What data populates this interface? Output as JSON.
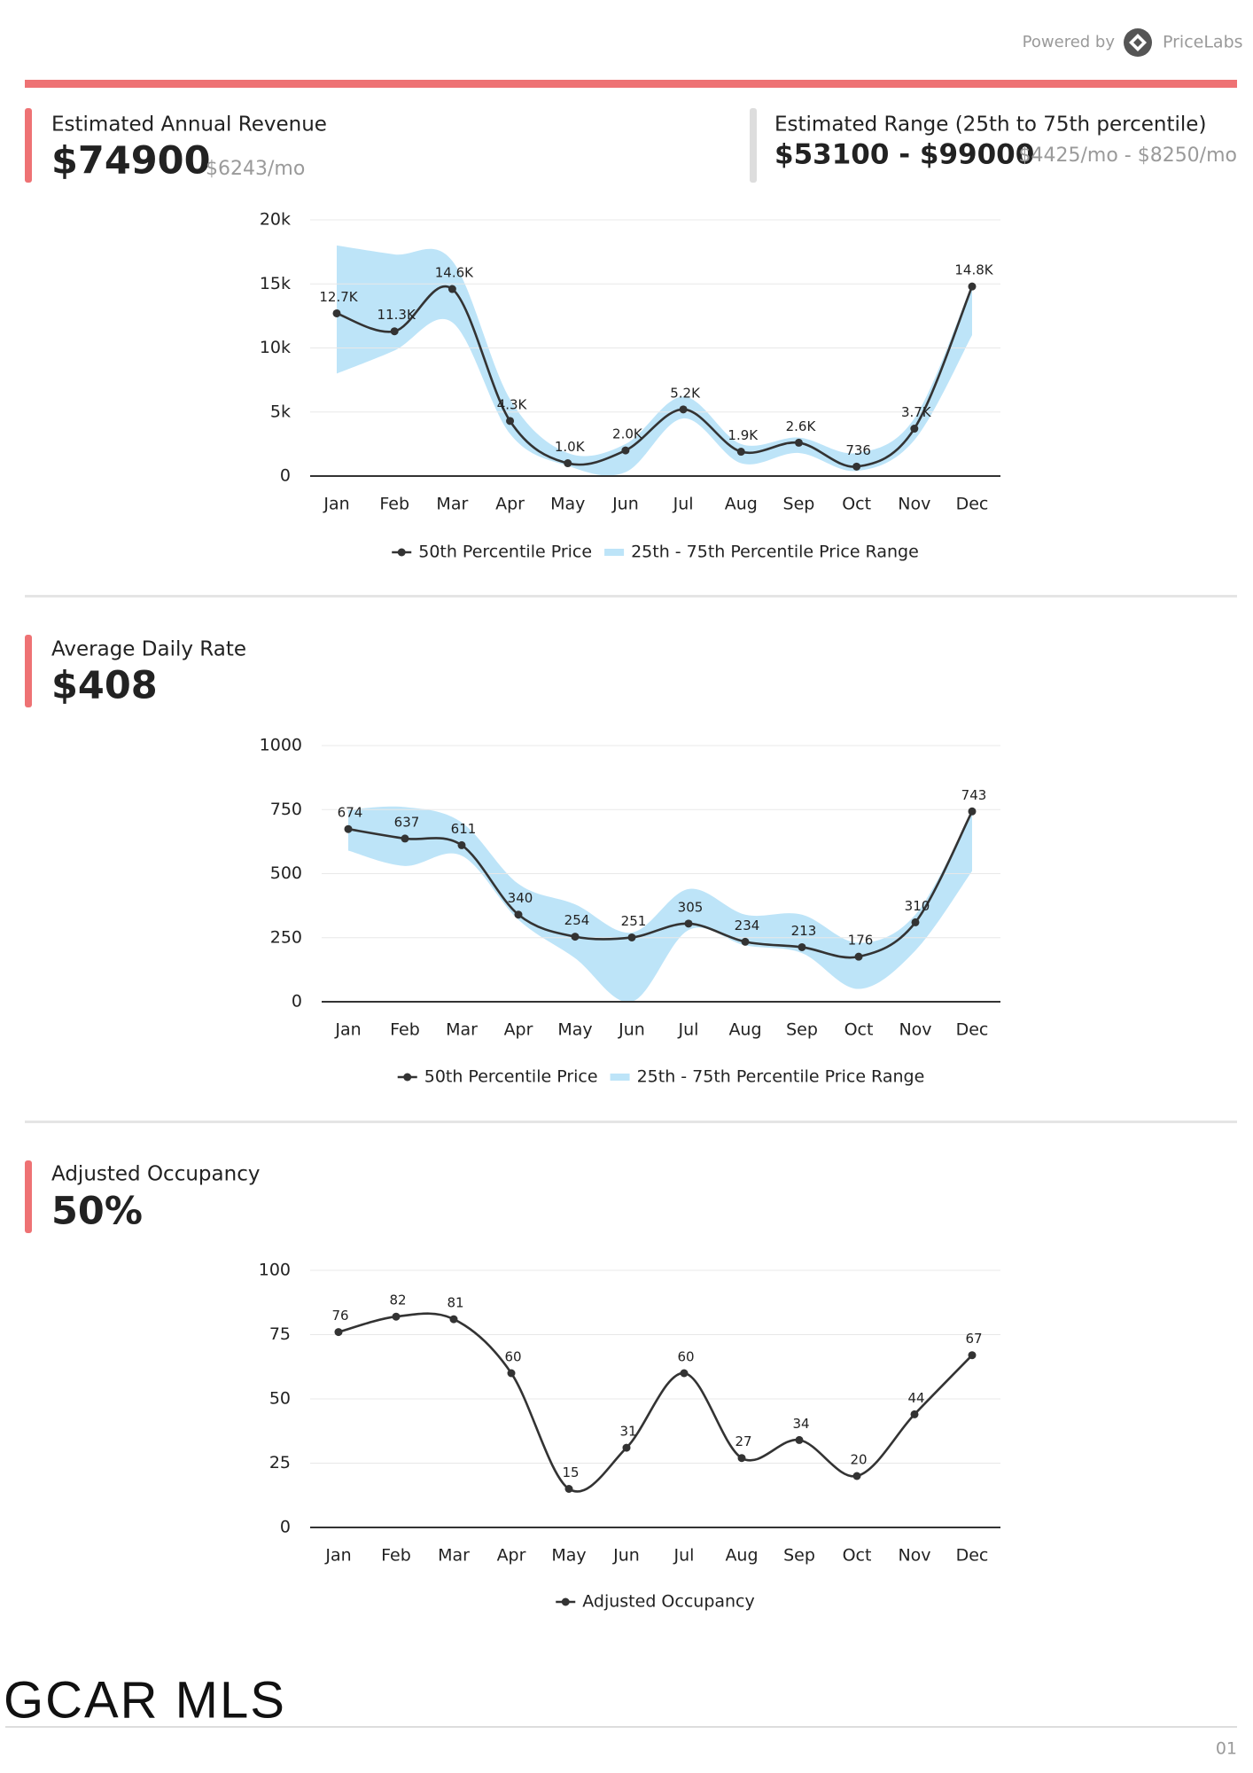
{
  "header": {
    "powered_by": "Powered by",
    "brand": "PriceLabs"
  },
  "revenue": {
    "label": "Estimated Annual Revenue",
    "value": "$74900",
    "monthly": "$6243/mo"
  },
  "range": {
    "label": "Estimated Range (25th to 75th percentile)",
    "value": "$53100 - $99000",
    "monthly": "$4425/mo - $8250/mo"
  },
  "adr": {
    "label": "Average Daily Rate",
    "value": "$408"
  },
  "occupancy": {
    "label": "Adjusted Occupancy",
    "value": "50%"
  },
  "footer": {
    "logo": "GCAR MLS",
    "page": "01"
  },
  "chart_data": [
    {
      "type": "line",
      "grid": true,
      "legend": "bottom",
      "categories": [
        "Jan",
        "Feb",
        "Mar",
        "Apr",
        "May",
        "Jun",
        "Jul",
        "Aug",
        "Sep",
        "Oct",
        "Nov",
        "Dec"
      ],
      "ylim": [
        0,
        20000
      ],
      "yticks": [
        0,
        {
          "value": 5000,
          "label": "5k"
        },
        {
          "value": 10000,
          "label": "10k"
        },
        {
          "value": 15000,
          "label": "15k"
        },
        {
          "value": 20000,
          "label": "20k"
        }
      ],
      "series": [
        {
          "name": "50th Percentile Price",
          "color": "#333333",
          "values": [
            12700,
            11300,
            14600,
            4300,
            1000,
            2000,
            5200,
            1900,
            2600,
            736,
            3700,
            14800
          ],
          "value_labels": [
            "12.7K",
            "11.3K",
            "14.6K",
            "4.3K",
            "1.0K",
            "2.0K",
            "5.2K",
            "1.9K",
            "2.6K",
            "736",
            "3.7K",
            "14.8K"
          ]
        },
        {
          "name": "25th - 75th Percentile Price Range",
          "color": "#bde4f8",
          "high": [
            18000,
            17300,
            16800,
            6000,
            1800,
            2500,
            6200,
            2500,
            3000,
            1800,
            4500,
            15000
          ],
          "low": [
            8000,
            9800,
            12000,
            3300,
            800,
            300,
            4500,
            1000,
            1800,
            400,
            2800,
            11000
          ]
        }
      ]
    },
    {
      "type": "line",
      "grid": true,
      "legend": "bottom",
      "categories": [
        "Jan",
        "Feb",
        "Mar",
        "Apr",
        "May",
        "Jun",
        "Jul",
        "Aug",
        "Sep",
        "Oct",
        "Nov",
        "Dec"
      ],
      "ylim": [
        0,
        1000
      ],
      "yticks": [
        0,
        250,
        500,
        750,
        1000
      ],
      "series": [
        {
          "name": "50th Percentile Price",
          "color": "#333333",
          "values": [
            674,
            637,
            611,
            340,
            254,
            251,
            305,
            234,
            213,
            176,
            310,
            743
          ]
        },
        {
          "name": "25th - 75th Percentile Price Range",
          "color": "#bde4f8",
          "high": [
            750,
            760,
            700,
            460,
            380,
            270,
            440,
            340,
            340,
            230,
            340,
            740
          ],
          "low": [
            590,
            530,
            570,
            320,
            170,
            0,
            280,
            220,
            190,
            50,
            200,
            510
          ]
        }
      ]
    },
    {
      "type": "line",
      "grid": true,
      "legend": "bottom",
      "categories": [
        "Jan",
        "Feb",
        "Mar",
        "Apr",
        "May",
        "Jun",
        "Jul",
        "Aug",
        "Sep",
        "Oct",
        "Nov",
        "Dec"
      ],
      "ylim": [
        0,
        100
      ],
      "yticks": [
        0,
        25,
        50,
        75,
        100
      ],
      "series": [
        {
          "name": "Adjusted Occupancy",
          "color": "#333333",
          "values": [
            76,
            82,
            81,
            60,
            15,
            31,
            60,
            27,
            34,
            20,
            44,
            67
          ]
        }
      ]
    }
  ]
}
